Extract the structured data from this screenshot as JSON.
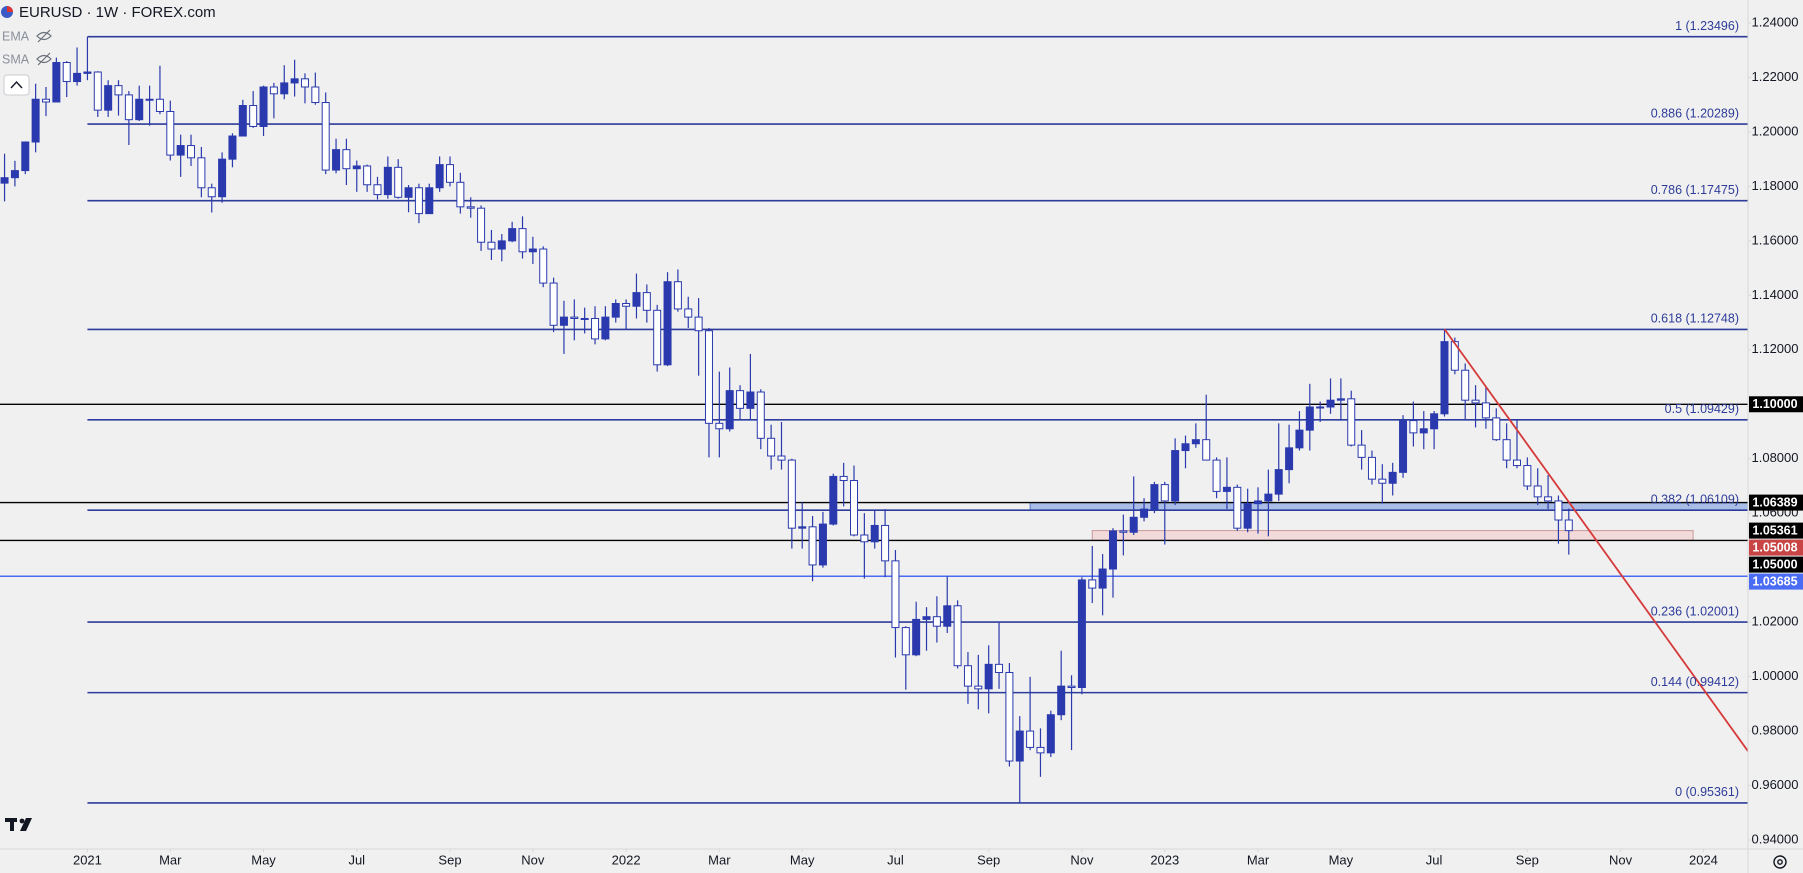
{
  "chart_data": {
    "type": "candlestick",
    "title": "EURUSD · 1W · FOREX.com",
    "indicators": [
      "EMA",
      "SMA"
    ],
    "up_color": "#2a3aae",
    "down_color": "#ffffff",
    "wick_color": "#2a3aae",
    "ylim": [
      0.94,
      1.24
    ],
    "xlim": [
      -0.44,
      168.3
    ],
    "yticks": [
      {
        "value": 1.24,
        "label": "1.24000"
      },
      {
        "value": 1.22,
        "label": "1.22000"
      },
      {
        "value": 1.2,
        "label": "1.20000"
      },
      {
        "value": 1.18,
        "label": "1.18000"
      },
      {
        "value": 1.16,
        "label": "1.16000"
      },
      {
        "value": 1.14,
        "label": "1.14000"
      },
      {
        "value": 1.12,
        "label": "1.12000"
      },
      {
        "value": 1.08,
        "label": "1.08000"
      },
      {
        "value": 1.06,
        "label": "1.06000"
      },
      {
        "value": 1.02,
        "label": "1.02000"
      },
      {
        "value": 1.0,
        "label": "1.00000"
      },
      {
        "value": 0.98,
        "label": "0.98000"
      },
      {
        "value": 0.96,
        "label": "0.96000"
      },
      {
        "value": 0.94,
        "label": "0.94000"
      }
    ],
    "xticks": [
      {
        "value": 8,
        "label": "2021"
      },
      {
        "value": 16,
        "label": "Mar"
      },
      {
        "value": 25,
        "label": "May"
      },
      {
        "value": 34,
        "label": "Jul"
      },
      {
        "value": 43,
        "label": "Sep"
      },
      {
        "value": 51,
        "label": "Nov"
      },
      {
        "value": 60,
        "label": "2022"
      },
      {
        "value": 69,
        "label": "Mar"
      },
      {
        "value": 77,
        "label": "May"
      },
      {
        "value": 86,
        "label": "Jul"
      },
      {
        "value": 95,
        "label": "Sep"
      },
      {
        "value": 104,
        "label": "Nov"
      },
      {
        "value": 112,
        "label": "2023"
      },
      {
        "value": 121,
        "label": "Mar"
      },
      {
        "value": 129,
        "label": "May"
      },
      {
        "value": 138,
        "label": "Jul"
      },
      {
        "value": 147,
        "label": "Sep"
      },
      {
        "value": 156,
        "label": "Nov"
      },
      {
        "value": 164,
        "label": "2024"
      }
    ],
    "fib_start": 8,
    "fib_color": "#2d3c9a",
    "fib_levels": [
      {
        "value": 1.23496,
        "label": "1 (1.23496)"
      },
      {
        "value": 1.20289,
        "label": "0.886 (1.20289)"
      },
      {
        "value": 1.17475,
        "label": "0.786 (1.17475)"
      },
      {
        "value": 1.12748,
        "label": "0.618 (1.12748)"
      },
      {
        "value": 1.09429,
        "label": "0.5 (1.09429)"
      },
      {
        "value": 1.06109,
        "label": "0.382 (1.06109)"
      },
      {
        "value": 1.02001,
        "label": "0.236 (1.02001)"
      },
      {
        "value": 0.99412,
        "label": "0.144 (0.99412)"
      },
      {
        "value": 0.95361,
        "label": "0 (0.95361)"
      }
    ],
    "hlines": [
      {
        "value": 1.1,
        "color": "#000000"
      },
      {
        "value": 1.06389,
        "color": "#000000"
      },
      {
        "value": 1.05,
        "color": "#000000"
      },
      {
        "value": 1.03685,
        "color": "#4a6cf5"
      }
    ],
    "zones": [
      {
        "from": 1.06109,
        "to": 1.06389,
        "start": 99,
        "end": 168.3,
        "fill": "#a9bde6",
        "stroke": "#5b7bd0"
      },
      {
        "from": 1.05,
        "to": 1.05361,
        "start": 105,
        "end": 163,
        "fill": "#f2dada",
        "stroke": "#c99a9a"
      }
    ],
    "trendline": {
      "from": [
        139,
        1.1276
      ],
      "to": [
        168.3,
        0.9726
      ],
      "color": "#d63a3a"
    },
    "price_labels": [
      {
        "value": 1.1,
        "label": "1.10000",
        "color": "#000000"
      },
      {
        "value": 1.06389,
        "label": "1.06389",
        "color": "#000000"
      },
      {
        "value": 1.05361,
        "label": "1.05361",
        "color": "#000000"
      },
      {
        "value": 1.05008,
        "label": "1.05008",
        "color": "#c94444"
      },
      {
        "value": 1.05,
        "label": "1.05000",
        "color": "#000000"
      },
      {
        "value": 1.03685,
        "label": "1.03685",
        "color": "#4a6cf5"
      }
    ],
    "candles": [
      [
        1.1812,
        1.192,
        1.1745,
        1.1832
      ],
      [
        1.1832,
        1.1894,
        1.18,
        1.1858
      ],
      [
        1.1858,
        1.1965,
        1.1845,
        1.1963
      ],
      [
        1.1963,
        1.2177,
        1.1925,
        1.212
      ],
      [
        1.212,
        1.2165,
        1.2058,
        1.211
      ],
      [
        1.211,
        1.2273,
        1.211,
        1.2255
      ],
      [
        1.2255,
        1.226,
        1.2128,
        1.2185
      ],
      [
        1.2185,
        1.231,
        1.217,
        1.2215
      ],
      [
        1.2215,
        1.2349,
        1.219,
        1.222
      ],
      [
        1.222,
        1.2223,
        1.2055,
        1.208
      ],
      [
        1.208,
        1.219,
        1.2055,
        1.217
      ],
      [
        1.217,
        1.219,
        1.206,
        1.2136
      ],
      [
        1.2136,
        1.215,
        1.1952,
        1.2045
      ],
      [
        1.2045,
        1.217,
        1.204,
        1.212
      ],
      [
        1.212,
        1.217,
        1.2023,
        1.212
      ],
      [
        1.212,
        1.2243,
        1.2065,
        1.2075
      ],
      [
        1.2075,
        1.2115,
        1.1895,
        1.1915
      ],
      [
        1.1915,
        1.199,
        1.1835,
        1.195
      ],
      [
        1.195,
        1.199,
        1.1875,
        1.1905
      ],
      [
        1.1905,
        1.1945,
        1.176,
        1.1795
      ],
      [
        1.1795,
        1.181,
        1.1704,
        1.1762
      ],
      [
        1.1762,
        1.1925,
        1.174,
        1.19
      ],
      [
        1.19,
        1.1995,
        1.187,
        1.1985
      ],
      [
        1.1985,
        1.2118,
        1.1985,
        1.2097
      ],
      [
        1.2097,
        1.215,
        1.2015,
        1.202
      ],
      [
        1.202,
        1.217,
        1.1985,
        1.2165
      ],
      [
        1.2165,
        1.218,
        1.205,
        1.214
      ],
      [
        1.214,
        1.2245,
        1.212,
        1.218
      ],
      [
        1.218,
        1.2265,
        1.213,
        1.2195
      ],
      [
        1.2195,
        1.2215,
        1.2105,
        1.2165
      ],
      [
        1.2165,
        1.2218,
        1.21,
        1.2108
      ],
      [
        1.2108,
        1.2145,
        1.1845,
        1.186
      ],
      [
        1.186,
        1.1975,
        1.1848,
        1.1935
      ],
      [
        1.1935,
        1.1975,
        1.1805,
        1.1865
      ],
      [
        1.1865,
        1.1895,
        1.178,
        1.1875
      ],
      [
        1.1875,
        1.188,
        1.178,
        1.1806
      ],
      [
        1.1806,
        1.1835,
        1.1752,
        1.177
      ],
      [
        1.177,
        1.191,
        1.1755,
        1.187
      ],
      [
        1.187,
        1.19,
        1.1755,
        1.176
      ],
      [
        1.176,
        1.1805,
        1.1705,
        1.1795
      ],
      [
        1.1795,
        1.181,
        1.1665,
        1.17
      ],
      [
        1.17,
        1.181,
        1.17,
        1.1795
      ],
      [
        1.1795,
        1.191,
        1.178,
        1.188
      ],
      [
        1.188,
        1.191,
        1.18,
        1.1815
      ],
      [
        1.1815,
        1.185,
        1.17,
        1.1725
      ],
      [
        1.1725,
        1.176,
        1.1685,
        1.172
      ],
      [
        1.172,
        1.173,
        1.1563,
        1.1595
      ],
      [
        1.1595,
        1.164,
        1.153,
        1.157
      ],
      [
        1.157,
        1.1625,
        1.1525,
        1.16
      ],
      [
        1.16,
        1.167,
        1.1595,
        1.1645
      ],
      [
        1.1645,
        1.169,
        1.1535,
        1.156
      ],
      [
        1.156,
        1.1615,
        1.1515,
        1.157
      ],
      [
        1.157,
        1.158,
        1.143,
        1.1445
      ],
      [
        1.1445,
        1.1465,
        1.1265,
        1.129
      ],
      [
        1.129,
        1.138,
        1.1185,
        1.132
      ],
      [
        1.132,
        1.1385,
        1.1235,
        1.1315
      ],
      [
        1.1315,
        1.1355,
        1.126,
        1.1315
      ],
      [
        1.1315,
        1.136,
        1.122,
        1.124
      ],
      [
        1.124,
        1.136,
        1.1235,
        1.132
      ],
      [
        1.132,
        1.1385,
        1.13,
        1.137
      ],
      [
        1.137,
        1.1385,
        1.1275,
        1.136
      ],
      [
        1.136,
        1.148,
        1.1315,
        1.141
      ],
      [
        1.141,
        1.144,
        1.13,
        1.1345
      ],
      [
        1.1345,
        1.1365,
        1.112,
        1.1145
      ],
      [
        1.1145,
        1.1485,
        1.114,
        1.145
      ],
      [
        1.145,
        1.1495,
        1.134,
        1.135
      ],
      [
        1.135,
        1.1395,
        1.128,
        1.132
      ],
      [
        1.132,
        1.139,
        1.1105,
        1.127
      ],
      [
        1.127,
        1.128,
        1.0805,
        1.093
      ],
      [
        1.093,
        1.112,
        1.0805,
        1.091
      ],
      [
        1.091,
        1.1135,
        1.09,
        1.105
      ],
      [
        1.105,
        1.107,
        1.0945,
        1.0985
      ],
      [
        1.0985,
        1.1185,
        1.0945,
        1.1045
      ],
      [
        1.1045,
        1.1055,
        1.0835,
        1.0875
      ],
      [
        1.0875,
        1.0925,
        1.076,
        1.081
      ],
      [
        1.081,
        1.0935,
        1.076,
        1.0795
      ],
      [
        1.0795,
        1.08,
        1.047,
        1.0545
      ],
      [
        1.0545,
        1.064,
        1.047,
        1.055
      ],
      [
        1.055,
        1.059,
        1.035,
        1.041
      ],
      [
        1.041,
        1.0605,
        1.04,
        1.056
      ],
      [
        1.056,
        1.0745,
        1.0555,
        1.0735
      ],
      [
        1.0735,
        1.0785,
        1.0625,
        1.072
      ],
      [
        1.072,
        1.0775,
        1.0515,
        1.052
      ],
      [
        1.052,
        1.06,
        1.036,
        1.0495
      ],
      [
        1.0495,
        1.061,
        1.047,
        1.0555
      ],
      [
        1.0555,
        1.0615,
        1.0365,
        1.0425
      ],
      [
        1.0425,
        1.0465,
        1.007,
        1.018
      ],
      [
        1.018,
        1.0185,
        0.9952,
        1.008
      ],
      [
        1.008,
        1.0275,
        1.0075,
        1.021
      ],
      [
        1.021,
        1.0255,
        1.0095,
        1.022
      ],
      [
        1.022,
        1.0295,
        1.0125,
        1.0185
      ],
      [
        1.0185,
        1.0368,
        1.016,
        1.026
      ],
      [
        1.026,
        1.028,
        1.003,
        1.004
      ],
      [
        1.004,
        1.009,
        0.99,
        0.9965
      ],
      [
        0.9965,
        1.008,
        0.988,
        0.9955
      ],
      [
        0.9955,
        1.0115,
        0.9865,
        1.0045
      ],
      [
        1.0045,
        1.0198,
        0.9955,
        1.0015
      ],
      [
        1.0015,
        1.005,
        0.967,
        0.969
      ],
      [
        0.969,
        0.9855,
        0.9536,
        0.98
      ],
      [
        0.98,
        0.9999,
        0.973,
        0.974
      ],
      [
        0.974,
        0.981,
        0.9632,
        0.972
      ],
      [
        0.972,
        0.9875,
        0.9705,
        0.986
      ],
      [
        0.986,
        1.0095,
        0.984,
        0.9965
      ],
      [
        0.9965,
        1.0005,
        0.973,
        0.996
      ],
      [
        0.996,
        1.0365,
        0.9935,
        1.0355
      ],
      [
        1.0355,
        1.048,
        1.027,
        1.0325
      ],
      [
        1.0325,
        1.045,
        1.0225,
        1.0395
      ],
      [
        1.0395,
        1.0545,
        1.029,
        1.0535
      ],
      [
        1.0535,
        1.0595,
        1.0445,
        1.053
      ],
      [
        1.053,
        1.0735,
        1.052,
        1.0585
      ],
      [
        1.0585,
        1.0655,
        1.057,
        1.0615
      ],
      [
        1.0615,
        1.0715,
        1.06,
        1.0705
      ],
      [
        1.0705,
        1.0715,
        1.0485,
        1.0645
      ],
      [
        1.0645,
        1.0875,
        1.063,
        1.083
      ],
      [
        1.083,
        1.0885,
        1.0765,
        1.0855
      ],
      [
        1.0855,
        1.093,
        1.084,
        1.087
      ],
      [
        1.087,
        1.1035,
        1.0795,
        1.0795
      ],
      [
        1.0795,
        1.0805,
        1.0655,
        1.068
      ],
      [
        1.068,
        1.0805,
        1.0615,
        1.0695
      ],
      [
        1.0695,
        1.0705,
        1.0535,
        1.0545
      ],
      [
        1.0545,
        1.069,
        1.053,
        1.0635
      ],
      [
        1.0635,
        1.0695,
        1.0525,
        1.0645
      ],
      [
        1.0645,
        1.076,
        1.0515,
        1.067
      ],
      [
        1.067,
        1.093,
        1.0645,
        1.076
      ],
      [
        1.076,
        1.0925,
        1.071,
        1.084
      ],
      [
        1.084,
        1.0975,
        1.083,
        1.0905
      ],
      [
        1.0905,
        1.1075,
        1.083,
        1.099
      ],
      [
        1.099,
        1.101,
        1.0935,
        1.099
      ],
      [
        1.099,
        1.1095,
        1.0965,
        1.1015
      ],
      [
        1.1015,
        1.1095,
        1.094,
        1.102
      ],
      [
        1.102,
        1.105,
        1.0845,
        1.085
      ],
      [
        1.085,
        1.0905,
        1.076,
        1.0805
      ],
      [
        1.0805,
        1.083,
        1.0705,
        1.0725
      ],
      [
        1.0725,
        1.078,
        1.0635,
        1.071
      ],
      [
        1.071,
        1.0785,
        1.0665,
        1.075
      ],
      [
        1.075,
        1.096,
        1.073,
        1.094
      ],
      [
        1.094,
        1.101,
        1.0845,
        1.0895
      ],
      [
        1.0895,
        1.0975,
        1.0835,
        1.091
      ],
      [
        1.091,
        1.0975,
        1.0835,
        1.0965
      ],
      [
        1.0965,
        1.1276,
        1.0955,
        1.123
      ],
      [
        1.123,
        1.1245,
        1.111,
        1.1125
      ],
      [
        1.1125,
        1.115,
        1.0945,
        1.1015
      ],
      [
        1.1015,
        1.107,
        1.0915,
        1.1005
      ],
      [
        1.1005,
        1.1065,
        1.091,
        1.095
      ],
      [
        1.095,
        1.0985,
        1.0865,
        1.087
      ],
      [
        1.087,
        1.093,
        1.0765,
        1.0795
      ],
      [
        1.0795,
        1.0945,
        1.0765,
        1.0775
      ],
      [
        1.0775,
        1.0805,
        1.0685,
        1.07
      ],
      [
        1.07,
        1.0765,
        1.063,
        1.066
      ],
      [
        1.066,
        1.074,
        1.0615,
        1.0645
      ],
      [
        1.0645,
        1.0665,
        1.0488,
        1.0575
      ],
      [
        1.0575,
        1.0617,
        1.0448,
        1.0536
      ]
    ]
  }
}
